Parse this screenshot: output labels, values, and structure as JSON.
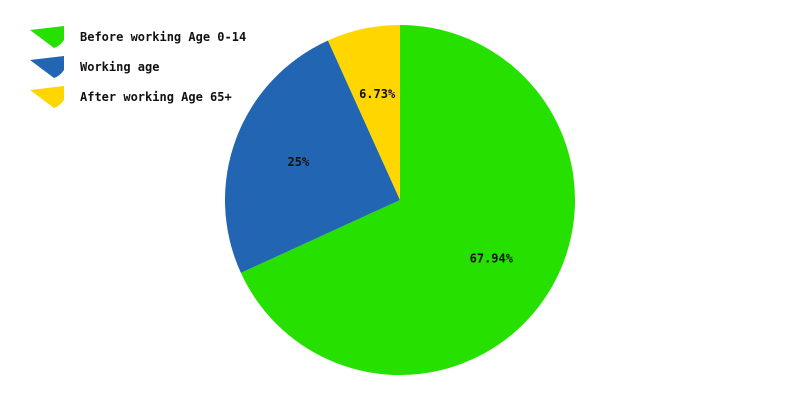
{
  "chart_data": {
    "type": "pie",
    "title": "",
    "series": [
      {
        "name": "Before working Age 0-14",
        "value": 67.94,
        "label": "67.94%",
        "color": "#26e000"
      },
      {
        "name": "Working age",
        "value": 25,
        "label": "25%",
        "color": "#2266b3"
      },
      {
        "name": "After working Age 65+",
        "value": 6.73,
        "label": "6.73%",
        "color": "#ffd600"
      }
    ],
    "legend_placement": "top-left",
    "start_angle": "12 o'clock",
    "direction": "clockwise"
  }
}
